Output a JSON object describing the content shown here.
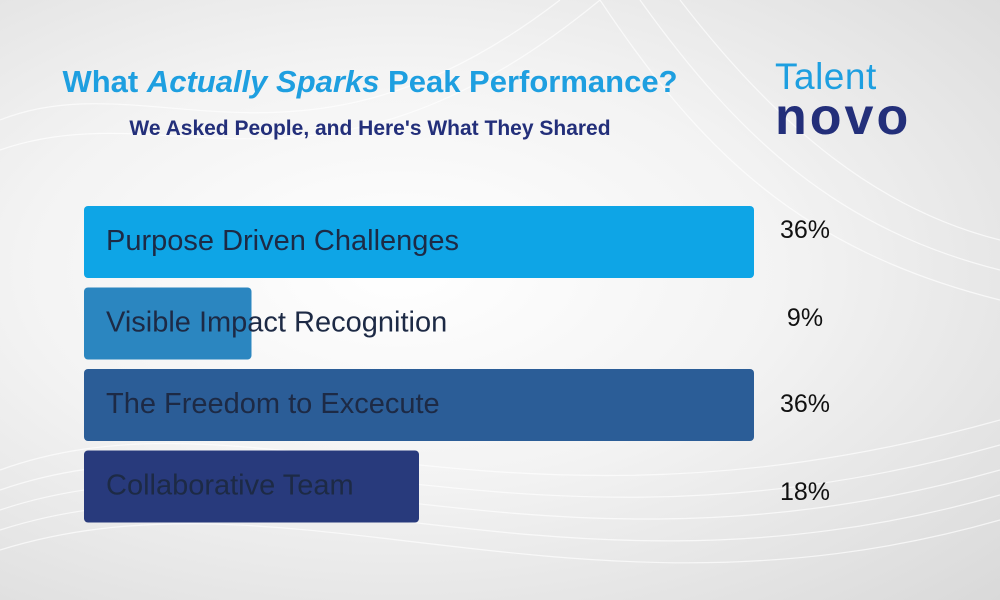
{
  "header": {
    "title_pre": "What ",
    "title_em": "Actually Sparks",
    "title_post": " Peak Performance?",
    "subtitle": "We Asked People, and Here's What They Shared"
  },
  "logo": {
    "top": "Talent",
    "bottom": "novo"
  },
  "chart_data": {
    "type": "bar",
    "orientation": "horizontal",
    "categories": [
      "Purpose Driven Challenges",
      "Visible Impact Recognition",
      "The Freedom to Excecute",
      "Collaborative Team"
    ],
    "values": [
      36,
      9,
      36,
      18
    ],
    "value_labels": [
      "36%",
      "9%",
      "36%",
      "18%"
    ],
    "bar_colors": [
      "#0ea5e6",
      "#2b86c0",
      "#2b5d97",
      "#283a7c"
    ],
    "xlim": [
      0,
      36
    ],
    "grid": false,
    "legend": "none"
  },
  "colors": {
    "title": "#1e9fe0",
    "subtitle": "#232f7a"
  }
}
